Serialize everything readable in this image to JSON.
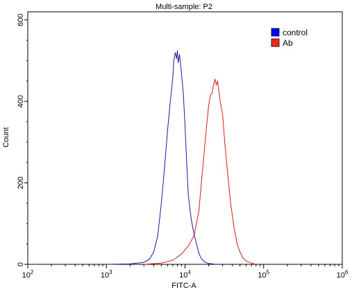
{
  "chart_data": {
    "type": "line",
    "title": "Multi-sample: P2",
    "xlabel": "FITC-A",
    "ylabel": "Count",
    "xscale": "log",
    "xlim": [
      100,
      1000000
    ],
    "ylim": [
      0,
      620
    ],
    "x_ticks": [
      {
        "base": "10",
        "exp": "2"
      },
      {
        "base": "10",
        "exp": "3"
      },
      {
        "base": "10",
        "exp": "4"
      },
      {
        "base": "10",
        "exp": "5"
      },
      {
        "base": "10",
        "exp": "6"
      }
    ],
    "y_ticks": [
      "0",
      "200",
      "400",
      "600"
    ],
    "y_tick_values": [
      0,
      200,
      400,
      600
    ],
    "legend_position": "top-right",
    "series": [
      {
        "name": "control",
        "color": "#1a1aa0",
        "legend_color": "#0000ff",
        "x": [
          1000,
          2000,
          3000,
          3500,
          4000,
          4500,
          5000,
          5500,
          6000,
          6500,
          7000,
          7200,
          7500,
          7800,
          8000,
          8200,
          8500,
          8800,
          9000,
          9500,
          10000,
          10500,
          11000,
          12000,
          13000,
          14000,
          15000,
          16000,
          18000,
          20000,
          25000
        ],
        "y": [
          0,
          1,
          5,
          12,
          30,
          70,
          150,
          240,
          330,
          400,
          460,
          500,
          520,
          505,
          525,
          495,
          515,
          490,
          470,
          420,
          340,
          250,
          170,
          110,
          75,
          50,
          28,
          15,
          5,
          2,
          0
        ]
      },
      {
        "name": "Ab",
        "color": "#d41a1a",
        "legend_color": "#ff2020",
        "x": [
          3000,
          5000,
          7000,
          9000,
          11000,
          13000,
          15000,
          16500,
          18000,
          19000,
          20000,
          21000,
          22000,
          23000,
          24000,
          25000,
          26000,
          27000,
          28000,
          30000,
          32000,
          35000,
          38000,
          42000,
          46000,
          50000,
          55000,
          60000,
          70000,
          80000
        ],
        "y": [
          0,
          3,
          10,
          25,
          45,
          70,
          130,
          220,
          300,
          350,
          390,
          415,
          420,
          440,
          455,
          440,
          450,
          425,
          400,
          370,
          300,
          220,
          150,
          90,
          50,
          30,
          15,
          8,
          3,
          0
        ]
      }
    ]
  }
}
